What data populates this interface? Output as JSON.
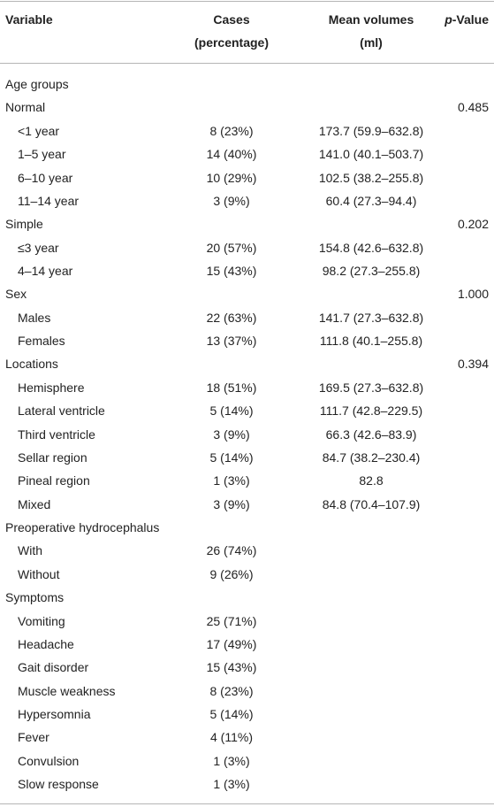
{
  "table": {
    "header": {
      "variable": "Variable",
      "cases": [
        "Cases",
        "(percentage)"
      ],
      "mean": [
        "Mean volumes",
        "(ml)"
      ],
      "p_value": "p-Value"
    },
    "groups": [
      {
        "label": "Age groups"
      },
      {
        "label": "Normal",
        "p_value": "0.485",
        "items": [
          {
            "label": "<1 year",
            "cases": "8 (23%)",
            "mean": "173.7 (59.9–632.8)"
          },
          {
            "label": "1–5 year",
            "cases": "14 (40%)",
            "mean": "141.0 (40.1–503.7)"
          },
          {
            "label": "6–10 year",
            "cases": "10 (29%)",
            "mean": "102.5 (38.2–255.8)"
          },
          {
            "label": "11–14 year",
            "cases": "3 (9%)",
            "mean": "60.4 (27.3–94.4)"
          }
        ]
      },
      {
        "label": "Simple",
        "p_value": "0.202",
        "items": [
          {
            "label": "≤3 year",
            "cases": "20 (57%)",
            "mean": "154.8 (42.6–632.8)"
          },
          {
            "label": "4–14 year",
            "cases": "15 (43%)",
            "mean": "98.2 (27.3–255.8)"
          }
        ]
      },
      {
        "label": "Sex",
        "p_value": "1.000",
        "items": [
          {
            "label": "Males",
            "cases": "22 (63%)",
            "mean": "141.7 (27.3–632.8)"
          },
          {
            "label": "Females",
            "cases": "13 (37%)",
            "mean": "111.8 (40.1–255.8)"
          }
        ]
      },
      {
        "label": "Locations",
        "p_value": "0.394",
        "items": [
          {
            "label": "Hemisphere",
            "cases": "18 (51%)",
            "mean": "169.5 (27.3–632.8)"
          },
          {
            "label": "Lateral ventricle",
            "cases": "5 (14%)",
            "mean": "111.7 (42.8–229.5)"
          },
          {
            "label": "Third ventricle",
            "cases": "3 (9%)",
            "mean": "66.3 (42.6–83.9)"
          },
          {
            "label": "Sellar region",
            "cases": "5 (14%)",
            "mean": "84.7 (38.2–230.4)"
          },
          {
            "label": "Pineal region",
            "cases": "1 (3%)",
            "mean": "82.8"
          },
          {
            "label": "Mixed",
            "cases": "3 (9%)",
            "mean": "84.8 (70.4–107.9)"
          }
        ]
      },
      {
        "label": "Preoperative hydrocephalus",
        "items": [
          {
            "label": "With",
            "cases": "26 (74%)"
          },
          {
            "label": "Without",
            "cases": "9 (26%)"
          }
        ]
      },
      {
        "label": "Symptoms",
        "items": [
          {
            "label": "Vomiting",
            "cases": "25 (71%)"
          },
          {
            "label": "Headache",
            "cases": "17 (49%)"
          },
          {
            "label": "Gait disorder",
            "cases": "15 (43%)"
          },
          {
            "label": "Muscle weakness",
            "cases": "8 (23%)"
          },
          {
            "label": "Hypersomnia",
            "cases": "5 (14%)"
          },
          {
            "label": "Fever",
            "cases": "4 (11%)"
          },
          {
            "label": "Convulsion",
            "cases": "1 (3%)"
          },
          {
            "label": "Slow response",
            "cases": "1 (3%)"
          }
        ]
      }
    ]
  }
}
